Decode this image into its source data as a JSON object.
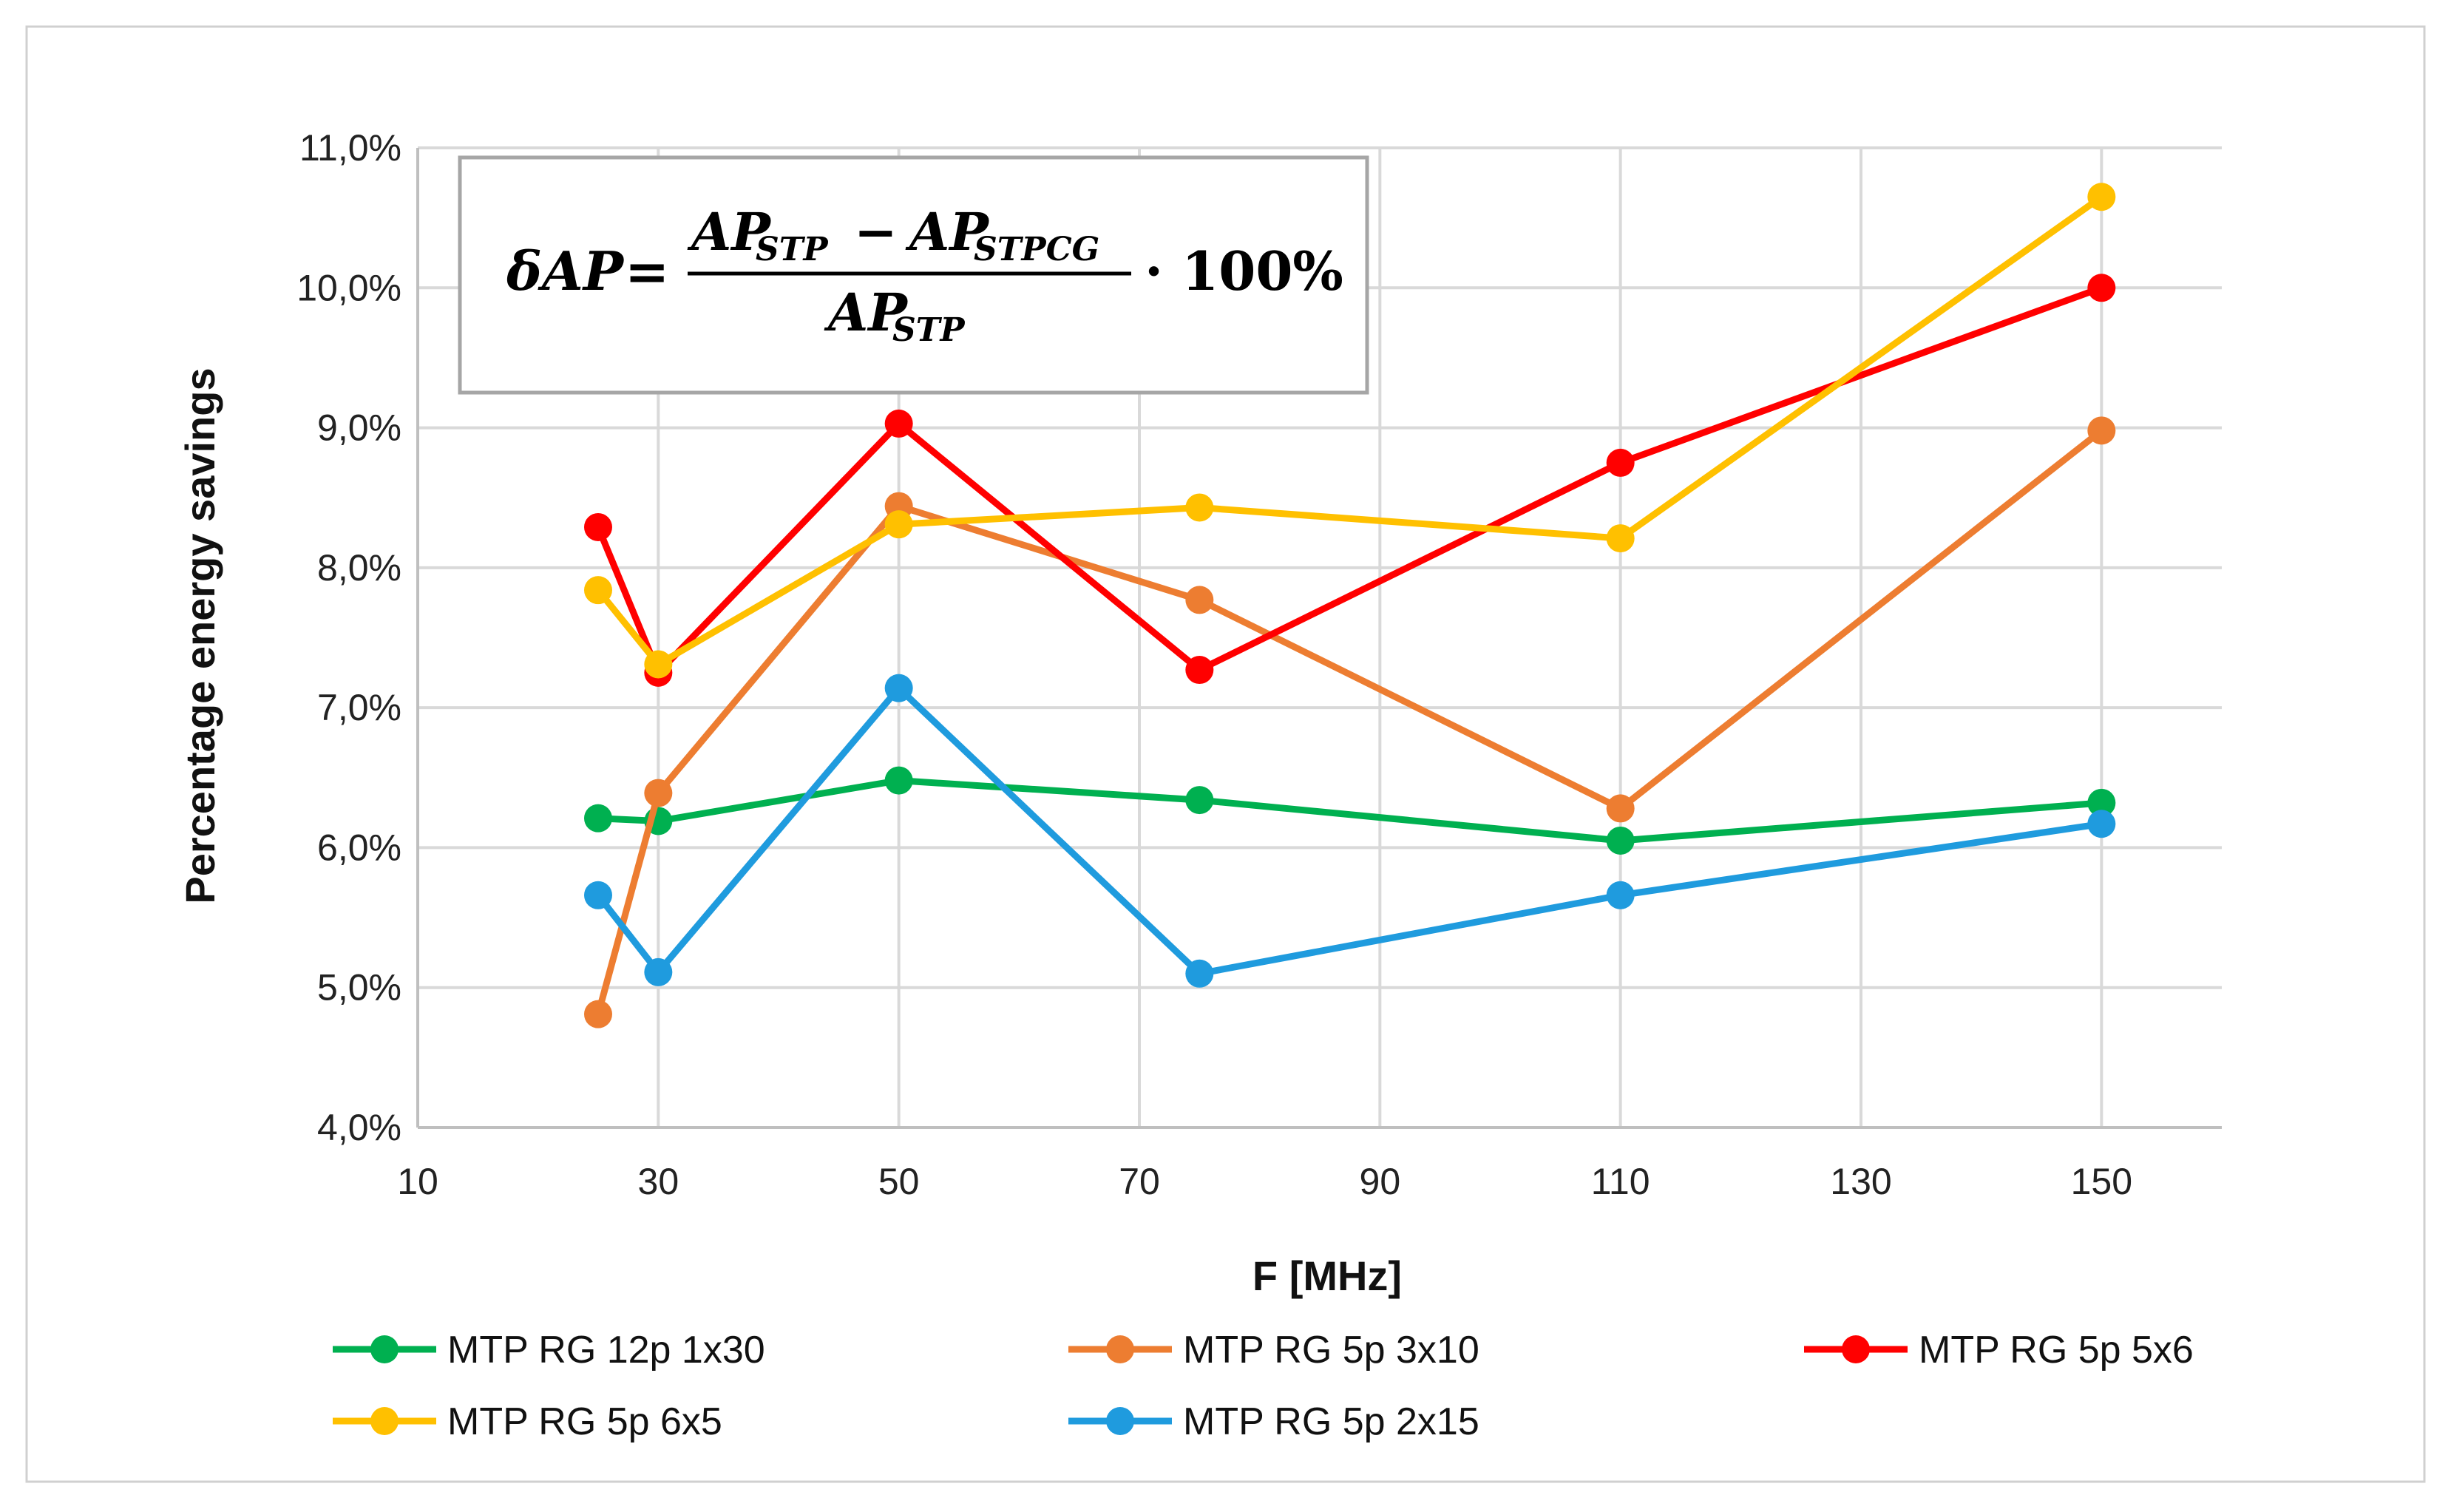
{
  "chart_data": {
    "type": "line",
    "xlabel": "F [MHz]",
    "ylabel": "Percentage energy savings",
    "xlim": [
      10,
      160
    ],
    "ylim": [
      4.0,
      11.0
    ],
    "xticks": [
      10,
      30,
      50,
      70,
      90,
      110,
      130,
      150
    ],
    "xtick_labels": [
      "10",
      "30",
      "50",
      "70",
      "90",
      "110",
      "130",
      "150"
    ],
    "yticks": [
      4.0,
      5.0,
      6.0,
      7.0,
      8.0,
      9.0,
      10.0,
      11.0
    ],
    "ytick_labels": [
      "4,0%",
      "5,0%",
      "6,0%",
      "7,0%",
      "8,0%",
      "9,0%",
      "10,0%",
      "11,0%"
    ],
    "grid": true,
    "legend_position": "bottom",
    "x": [
      25,
      30,
      50,
      75,
      110,
      150
    ],
    "series": [
      {
        "name": "MTP RG 12p 1x30",
        "color": "#00b050",
        "values": [
          6.21,
          6.19,
          6.48,
          6.34,
          6.05,
          6.32
        ]
      },
      {
        "name": "MTP RG 5p 3x10",
        "color": "#ed7d31",
        "values": [
          4.81,
          6.39,
          8.44,
          7.77,
          6.28,
          8.98
        ]
      },
      {
        "name": "MTP RG 5p 5x6",
        "color": "#ff0000",
        "values": [
          8.29,
          7.25,
          9.03,
          7.27,
          8.75,
          10.0
        ]
      },
      {
        "name": "MTP RG 5p 6x5",
        "color": "#ffc000",
        "values": [
          7.84,
          7.31,
          8.31,
          8.43,
          8.21,
          10.65
        ]
      },
      {
        "name": "MTP RG 5p 2x15",
        "color": "#1f9bde",
        "values": [
          5.66,
          5.11,
          7.14,
          5.1,
          5.66,
          6.17
        ]
      }
    ],
    "annotation": {
      "lhs": "δAP",
      "equals": "=",
      "numerator_a": "AP",
      "numerator_a_sub": "STP",
      "minus": "−",
      "numerator_b": "AP",
      "numerator_b_sub": "STPCG",
      "denominator": "AP",
      "denominator_sub": "STP",
      "factor": "· 100%"
    }
  }
}
